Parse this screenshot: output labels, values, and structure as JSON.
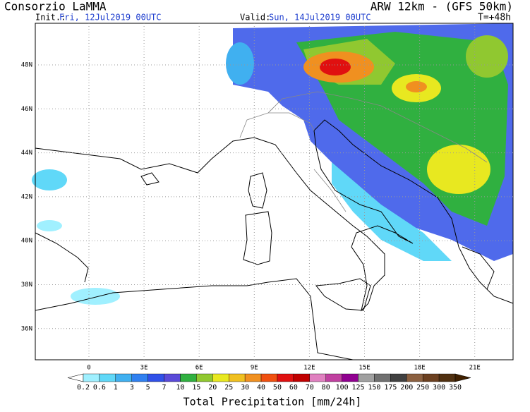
{
  "header": {
    "title": "Consorzio LaMMA",
    "model": "ARW 12km - (GFS 50km)",
    "init_label": "Init.:",
    "init_time": "Fri, 12Jul2019 00UTC",
    "valid_label": "Valid:",
    "valid_time": "Sun, 14Jul2019 00UTC",
    "lead_time": "T=+48h"
  },
  "map": {
    "lon_ticks": [
      "0",
      "3E",
      "6E",
      "9E",
      "12E",
      "15E",
      "18E",
      "21E"
    ],
    "lat_ticks": [
      "48N",
      "46N",
      "44N",
      "42N",
      "40N",
      "38N",
      "36N"
    ]
  },
  "colorbar": {
    "title": "Total Precipitation [mm/24h]",
    "levels": [
      "0.2",
      "0.6",
      "1",
      "3",
      "5",
      "7",
      "10",
      "15",
      "20",
      "25",
      "30",
      "40",
      "50",
      "60",
      "70",
      "80",
      "100",
      "125",
      "150",
      "175",
      "200",
      "250",
      "300",
      "350"
    ],
    "colors": [
      "#ffffff",
      "#a0f0ff",
      "#60d8f8",
      "#40b0f0",
      "#3080f0",
      "#3050e8",
      "#5a4ad8",
      "#30b040",
      "#90c830",
      "#e8e820",
      "#f0c020",
      "#f09020",
      "#f05010",
      "#e01010",
      "#c00000",
      "#e080c0",
      "#c040a0",
      "#900090",
      "#a0a0a0",
      "#707070",
      "#404040",
      "#8b6040",
      "#6b4020",
      "#503010",
      "#402000"
    ]
  }
}
